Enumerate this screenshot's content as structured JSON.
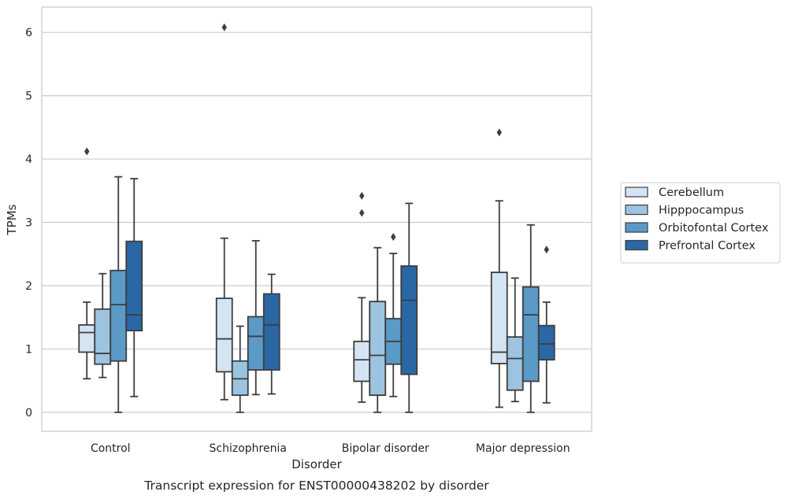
{
  "chart_data": {
    "type": "box",
    "title": "",
    "caption": "Transcript expression for ENST00000438202 by disorder",
    "xlabel": "Disorder",
    "ylabel": "TPMs",
    "ylim": [
      -0.3,
      6.4
    ],
    "yticks": [
      0,
      1,
      2,
      3,
      4,
      5,
      6
    ],
    "grid": "horizontal",
    "legend_position": "right",
    "categories": [
      "Control",
      "Schizophrenia",
      "Bipolar disorder",
      "Major depression"
    ],
    "series": [
      {
        "name": "Cerebellum",
        "color": "#d4e4f3",
        "boxes": [
          {
            "min": 0.53,
            "q1": 0.95,
            "median": 1.26,
            "q3": 1.38,
            "max": 1.74,
            "outliers": [
              4.12
            ]
          },
          {
            "min": 0.2,
            "q1": 0.64,
            "median": 1.16,
            "q3": 1.8,
            "max": 2.75,
            "outliers": [
              6.08
            ]
          },
          {
            "min": 0.16,
            "q1": 0.49,
            "median": 0.83,
            "q3": 1.12,
            "max": 1.81,
            "outliers": [
              3.42,
              3.15
            ]
          },
          {
            "min": 0.08,
            "q1": 0.77,
            "median": 0.95,
            "q3": 2.21,
            "max": 3.34,
            "outliers": [
              4.42
            ]
          }
        ]
      },
      {
        "name": "Hipppocampus",
        "color": "#9cc4e0",
        "boxes": [
          {
            "min": 0.55,
            "q1": 0.76,
            "median": 0.93,
            "q3": 1.63,
            "max": 2.19,
            "outliers": []
          },
          {
            "min": 0.0,
            "q1": 0.27,
            "median": 0.53,
            "q3": 0.81,
            "max": 1.36,
            "outliers": []
          },
          {
            "min": 0.0,
            "q1": 0.27,
            "median": 0.9,
            "q3": 1.75,
            "max": 2.6,
            "outliers": []
          },
          {
            "min": 0.17,
            "q1": 0.35,
            "median": 0.85,
            "q3": 1.19,
            "max": 2.12,
            "outliers": []
          }
        ]
      },
      {
        "name": "Orbitofontal Cortex",
        "color": "#5b9ac7",
        "boxes": [
          {
            "min": 0.0,
            "q1": 0.81,
            "median": 1.7,
            "q3": 2.24,
            "max": 3.72,
            "outliers": []
          },
          {
            "min": 0.28,
            "q1": 0.67,
            "median": 1.2,
            "q3": 1.51,
            "max": 2.71,
            "outliers": []
          },
          {
            "min": 0.25,
            "q1": 0.76,
            "median": 1.12,
            "q3": 1.48,
            "max": 2.51,
            "outliers": [
              2.77
            ]
          },
          {
            "min": 0.0,
            "q1": 0.49,
            "median": 1.54,
            "q3": 1.98,
            "max": 2.96,
            "outliers": []
          }
        ]
      },
      {
        "name": "Prefrontal Cortex",
        "color": "#2a67a5",
        "boxes": [
          {
            "min": 0.25,
            "q1": 1.29,
            "median": 1.54,
            "q3": 2.7,
            "max": 3.69,
            "outliers": []
          },
          {
            "min": 0.29,
            "q1": 0.67,
            "median": 1.38,
            "q3": 1.87,
            "max": 2.18,
            "outliers": []
          },
          {
            "min": 0.0,
            "q1": 0.6,
            "median": 1.77,
            "q3": 2.31,
            "max": 3.3,
            "outliers": []
          },
          {
            "min": 0.15,
            "q1": 0.83,
            "median": 1.08,
            "q3": 1.37,
            "max": 1.74,
            "outliers": [
              2.57
            ]
          }
        ]
      }
    ]
  }
}
